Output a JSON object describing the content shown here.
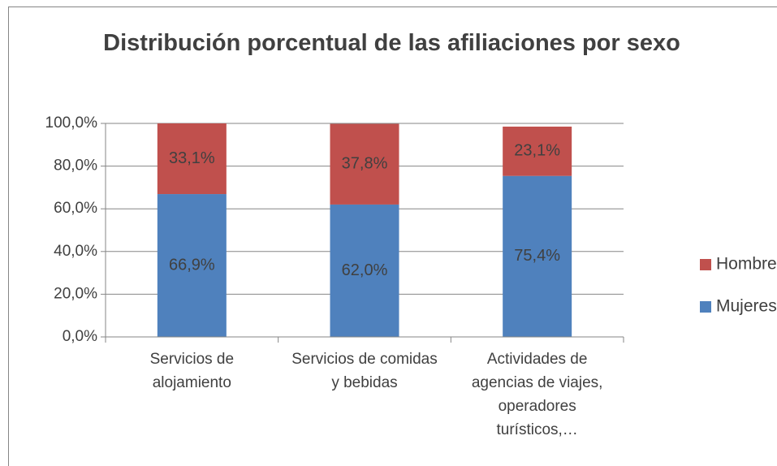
{
  "chart_data": {
    "type": "stacked_bar",
    "title": "Distribución porcentual de las afiliaciones por sexo",
    "categories": [
      "Servicios de alojamiento",
      "Servicios de comidas y bebidas",
      "Actividades de agencias de viajes, operadores turísticos,…"
    ],
    "series": [
      {
        "name": "Mujeres",
        "color": "#4f81bd",
        "values": [
          66.9,
          62.0,
          75.4
        ],
        "value_labels": [
          "66,9%",
          "62,0%",
          "75,4%"
        ]
      },
      {
        "name": "Hombres",
        "color": "#c0504d",
        "values": [
          33.1,
          37.8,
          23.1
        ],
        "value_labels": [
          "33,1%",
          "37,8%",
          "23,1%"
        ]
      }
    ],
    "ylim": [
      0,
      100
    ],
    "yticks": [
      {
        "value": 0,
        "label": "0,0%"
      },
      {
        "value": 20,
        "label": "20,0%"
      },
      {
        "value": 40,
        "label": "40,0%"
      },
      {
        "value": 60,
        "label": "60,0%"
      },
      {
        "value": 80,
        "label": "80,0%"
      },
      {
        "value": 100,
        "label": "100,0%"
      }
    ],
    "grid": true,
    "legend": "right"
  }
}
